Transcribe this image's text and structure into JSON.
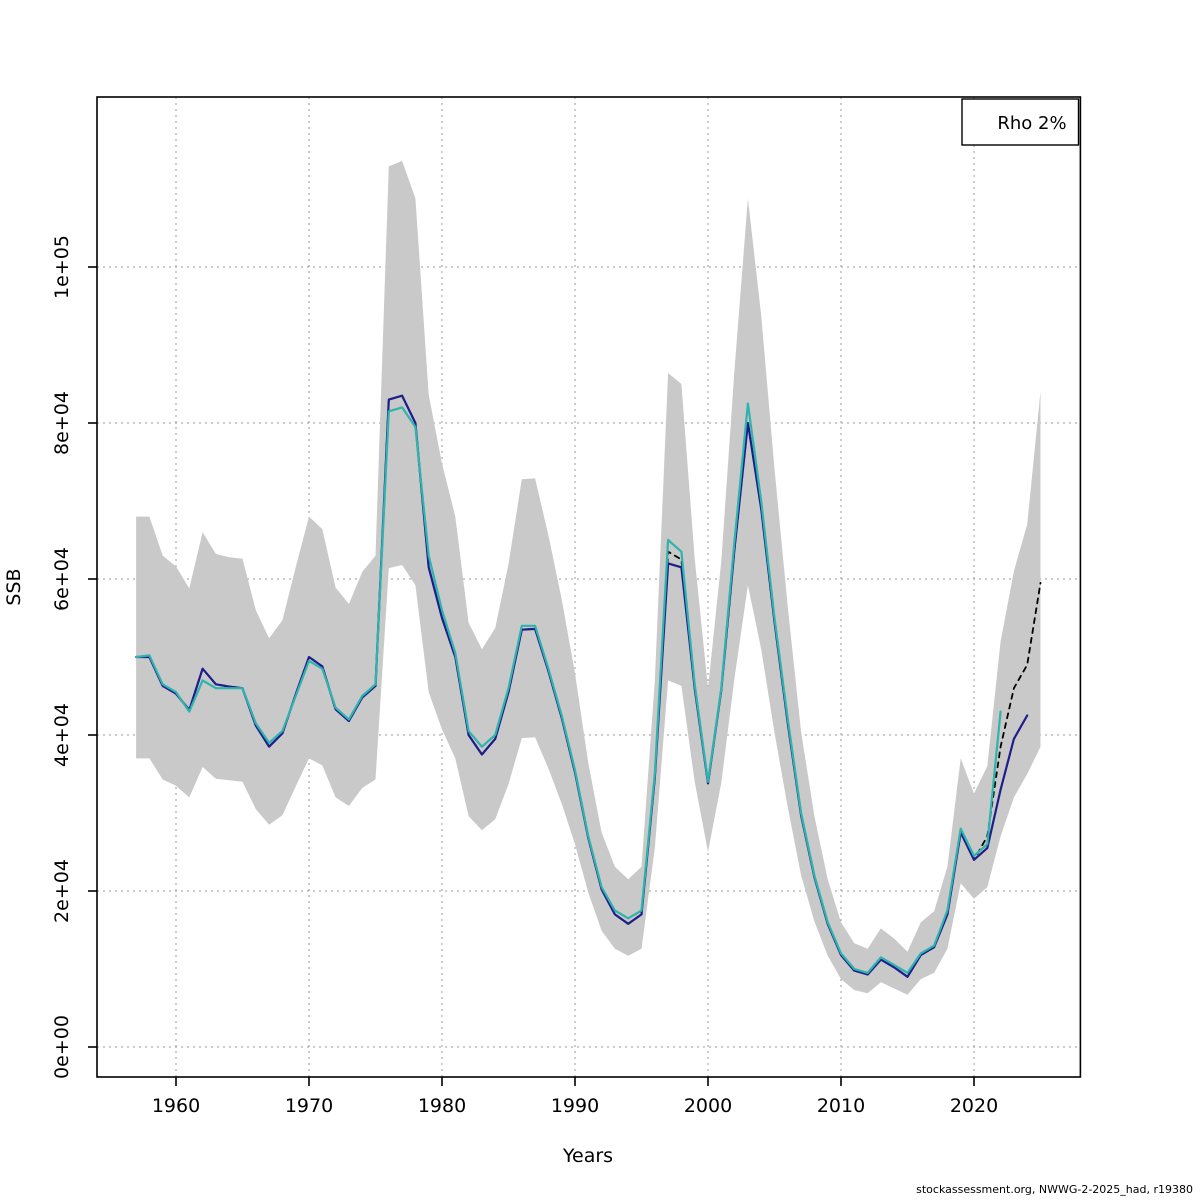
{
  "legend": {
    "label": "Rho 2%"
  },
  "footer": {
    "text": "stockassessment.org, NWWG-2-2025_had, r19380"
  },
  "axes": {
    "x_label": "Years",
    "y_label": "SSB",
    "x_ticks": [
      {
        "value": 1960,
        "label": "1960"
      },
      {
        "value": 1970,
        "label": "1970"
      },
      {
        "value": 1980,
        "label": "1980"
      },
      {
        "value": 1990,
        "label": "1990"
      },
      {
        "value": 2000,
        "label": "2000"
      },
      {
        "value": 2010,
        "label": "2010"
      },
      {
        "value": 2020,
        "label": "2020"
      }
    ],
    "y_ticks": [
      {
        "value": 0,
        "label": "0e+00"
      },
      {
        "value": 20000,
        "label": "2e+04"
      },
      {
        "value": 40000,
        "label": "4e+04"
      },
      {
        "value": 60000,
        "label": "6e+04"
      },
      {
        "value": 80000,
        "label": "8e+04"
      },
      {
        "value": 100000,
        "label": "1e+05"
      }
    ]
  },
  "colors": {
    "grid": "#999999",
    "axis": "#000000",
    "background": "#ffffff"
  },
  "chart_data": {
    "type": "line",
    "title": "",
    "xlabel": "Years",
    "ylabel": "SSB",
    "xlim": [
      1954,
      2028
    ],
    "ylim": [
      0,
      121800
    ],
    "grid": "dotted",
    "legend_position": "top-right",
    "legend_label": "Rho 2%",
    "x": [
      1957,
      1958,
      1959,
      1960,
      1961,
      1962,
      1963,
      1964,
      1965,
      1966,
      1967,
      1968,
      1969,
      1970,
      1971,
      1972,
      1973,
      1974,
      1975,
      1976,
      1977,
      1978,
      1979,
      1980,
      1981,
      1982,
      1983,
      1984,
      1985,
      1986,
      1987,
      1988,
      1989,
      1990,
      1991,
      1992,
      1993,
      1994,
      1995,
      1996,
      1997,
      1998,
      1999,
      2000,
      2001,
      2002,
      2003,
      2004,
      2005,
      2006,
      2007,
      2008,
      2009,
      2010,
      2011,
      2012,
      2013,
      2014,
      2015,
      2016,
      2017,
      2018,
      2019,
      2020,
      2021,
      2022,
      2023,
      2024,
      2025
    ],
    "series": [
      {
        "name": "final-assessment-forecast",
        "color": "#000000",
        "style": "dashed",
        "width": 1.8,
        "values": [
          50000,
          50000,
          46300,
          45300,
          43200,
          48500,
          46500,
          46200,
          46000,
          41200,
          38500,
          40200,
          45200,
          50000,
          48800,
          43300,
          41800,
          44800,
          46300,
          83000,
          83500,
          80000,
          61500,
          55000,
          50000,
          40000,
          37500,
          39500,
          45500,
          53500,
          53600,
          48200,
          42200,
          35200,
          26800,
          20200,
          17000,
          15800,
          17000,
          34500,
          63500,
          62500,
          46000,
          33800,
          45800,
          64000,
          80000,
          69000,
          54500,
          41500,
          29700,
          21800,
          15800,
          11800,
          9800,
          9300,
          11200,
          10200,
          9000,
          11800,
          12800,
          17000,
          27500,
          24000,
          27000,
          38500,
          46000,
          49000,
          59500
        ]
      },
      {
        "name": "retro-run-navy",
        "color": "#1d1d8c",
        "style": "solid",
        "width": 2.2,
        "values": [
          50000,
          50000,
          46300,
          45300,
          43200,
          48500,
          46500,
          46200,
          46000,
          41200,
          38500,
          40200,
          45200,
          50000,
          48800,
          43300,
          41800,
          44800,
          46300,
          83000,
          83500,
          80000,
          61500,
          55000,
          50000,
          40000,
          37500,
          39500,
          45500,
          53500,
          53600,
          48200,
          42200,
          35200,
          26800,
          20200,
          17000,
          15800,
          17000,
          34500,
          62000,
          61500,
          46000,
          33800,
          45800,
          64000,
          80000,
          69000,
          54500,
          41500,
          29700,
          21800,
          15800,
          11800,
          9800,
          9300,
          11200,
          10200,
          9000,
          11800,
          12800,
          17000,
          27500,
          24000,
          25500,
          33000,
          39500,
          42500,
          null
        ]
      },
      {
        "name": "retro-run-teal",
        "color": "#2fb3ad",
        "style": "solid",
        "width": 2.2,
        "values": [
          50000,
          50200,
          46500,
          45500,
          43000,
          47000,
          46000,
          46000,
          46000,
          41500,
          39000,
          40500,
          45000,
          49500,
          48500,
          43500,
          42000,
          45000,
          46500,
          81500,
          82000,
          79500,
          63000,
          56000,
          50500,
          40500,
          38500,
          40000,
          46000,
          54000,
          54000,
          48500,
          42500,
          35500,
          27000,
          20500,
          17500,
          16500,
          17500,
          35000,
          65000,
          63500,
          46500,
          34000,
          46000,
          65000,
          82500,
          70000,
          55000,
          42000,
          30000,
          22000,
          16000,
          12000,
          10000,
          9500,
          11500,
          10500,
          9500,
          12000,
          13000,
          17500,
          28000,
          24500,
          26000,
          43000,
          null,
          null,
          null
        ]
      }
    ],
    "band": {
      "name": "confidence-band",
      "color": "#c9c9c9",
      "lower": [
        37000,
        37000,
        34300,
        33500,
        32000,
        35900,
        34400,
        34200,
        34000,
        30500,
        28500,
        29700,
        33400,
        37000,
        36100,
        32000,
        30900,
        33200,
        34300,
        61400,
        61800,
        59200,
        45500,
        40700,
        37000,
        29600,
        27800,
        29200,
        33700,
        39600,
        39700,
        35700,
        31200,
        26000,
        19800,
        14900,
        12600,
        11700,
        12600,
        25500,
        47000,
        46300,
        34000,
        25000,
        33900,
        47400,
        59200,
        51000,
        40300,
        30700,
        22000,
        16100,
        11700,
        8700,
        7300,
        6900,
        8300,
        7500,
        6700,
        8700,
        9500,
        12600,
        21000,
        19000,
        20500,
        27000,
        32000,
        35000,
        38500
      ],
      "upper": [
        68000,
        68000,
        63000,
        61600,
        58800,
        66000,
        63200,
        62800,
        62600,
        56000,
        52400,
        54700,
        61500,
        68000,
        66400,
        58900,
        56800,
        60900,
        63000,
        112900,
        113600,
        108800,
        83600,
        74800,
        68000,
        54400,
        51000,
        53700,
        61900,
        72800,
        72900,
        65600,
        57400,
        47900,
        36400,
        27500,
        23100,
        21500,
        23100,
        46900,
        86400,
        85000,
        62600,
        46000,
        62300,
        87000,
        108800,
        93800,
        74100,
        56400,
        40400,
        29600,
        21500,
        16000,
        13300,
        12600,
        15200,
        13900,
        12200,
        16000,
        17400,
        23100,
        37000,
        32500,
        36000,
        52000,
        61000,
        67000,
        84000
      ]
    }
  }
}
